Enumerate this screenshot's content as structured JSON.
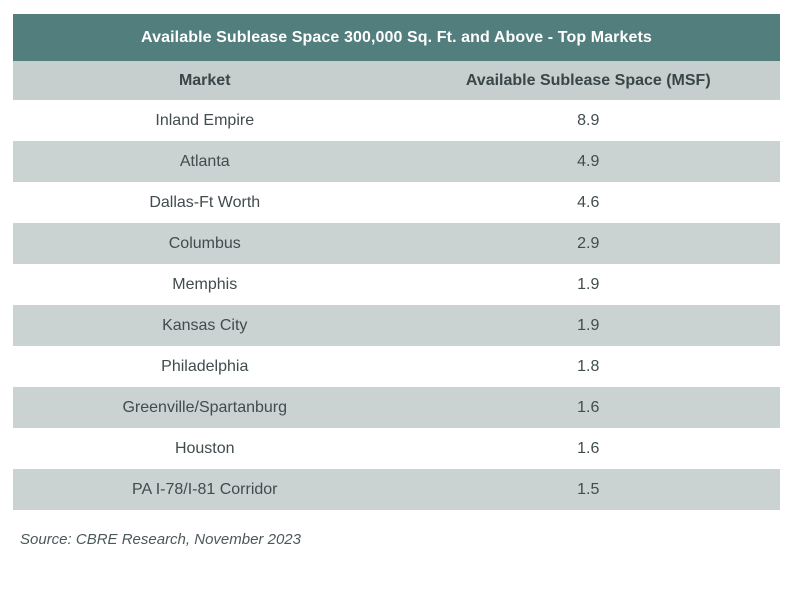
{
  "chart_data": {
    "type": "table",
    "title": "Available Sublease Space 300,000 Sq. Ft. and Above - Top Markets",
    "columns": [
      "Market",
      "Available Sublease Space (MSF)"
    ],
    "xlabel": "Market",
    "ylabel": "Available Sublease Space (MSF)",
    "categories": [
      "Inland Empire",
      "Atlanta",
      "Dallas-Ft Worth",
      "Columbus",
      "Memphis",
      "Kansas City",
      "Philadelphia",
      "Greenville/Spartanburg",
      "Houston",
      "PA I-78/I-81 Corridor"
    ],
    "values": [
      8.9,
      4.9,
      4.6,
      2.9,
      1.9,
      1.9,
      1.8,
      1.6,
      1.6,
      1.5
    ],
    "rows": [
      {
        "market": "Inland Empire",
        "value": "8.9"
      },
      {
        "market": "Atlanta",
        "value": "4.9"
      },
      {
        "market": "Dallas-Ft Worth",
        "value": "4.6"
      },
      {
        "market": "Columbus",
        "value": "2.9"
      },
      {
        "market": "Memphis",
        "value": "1.9"
      },
      {
        "market": "Kansas City",
        "value": "1.9"
      },
      {
        "market": "Philadelphia",
        "value": "1.8"
      },
      {
        "market": "Greenville/Spartanburg",
        "value": "1.6"
      },
      {
        "market": "Houston",
        "value": "1.6"
      },
      {
        "market": "PA I-78/I-81 Corridor",
        "value": "1.5"
      }
    ]
  },
  "source_note": "Source: CBRE Research, November 2023",
  "colors": {
    "title-bg": "#527e7e",
    "title-fg": "#ffffff",
    "colheader-bg": "#c6cfce",
    "row-alt-bg": "#cad2d2",
    "header-fg": "#394547",
    "data-fg": "#414c4e",
    "source-fg": "#4c585a"
  }
}
